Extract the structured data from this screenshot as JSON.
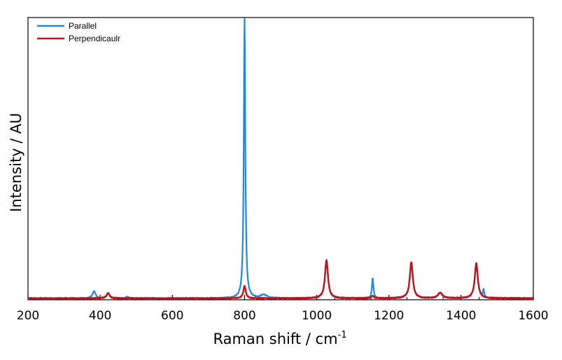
{
  "chart_data": {
    "type": "line",
    "title": "",
    "xlabel": "Raman shift / cm",
    "xlabel_sup": "-1",
    "ylabel": "Intensity / AU",
    "xlim": [
      200,
      1600
    ],
    "ylim": [
      0,
      100
    ],
    "xticks": [
      200,
      400,
      600,
      800,
      1000,
      1200,
      1400,
      1600
    ],
    "grid": false,
    "legend_position": "top-left",
    "baseline": 0.5,
    "series": [
      {
        "name": "Parallel",
        "color": "#1e88e5",
        "peaks": [
          {
            "center": 383,
            "height": 2.5,
            "width": 5
          },
          {
            "center": 422,
            "height": 1.8,
            "width": 5
          },
          {
            "center": 475,
            "height": 0.5,
            "width": 5
          },
          {
            "center": 800,
            "height": 99.0,
            "width": 2.5
          },
          {
            "center": 853,
            "height": 1.2,
            "width": 10
          },
          {
            "center": 1027,
            "height": 13.5,
            "width": 5
          },
          {
            "center": 1155,
            "height": 7.0,
            "width": 2.5
          },
          {
            "center": 1262,
            "height": 12.8,
            "width": 5
          },
          {
            "center": 1342,
            "height": 2.0,
            "width": 7
          },
          {
            "center": 1442,
            "height": 12.5,
            "width": 5
          },
          {
            "center": 1462,
            "height": 2.5,
            "width": 2
          }
        ]
      },
      {
        "name": "Perpendicaulr",
        "color": "#c0131a",
        "peaks": [
          {
            "center": 422,
            "height": 1.8,
            "width": 5
          },
          {
            "center": 800,
            "height": 4.5,
            "width": 4
          },
          {
            "center": 1027,
            "height": 13.5,
            "width": 5
          },
          {
            "center": 1155,
            "height": 0.8,
            "width": 4
          },
          {
            "center": 1262,
            "height": 12.8,
            "width": 5
          },
          {
            "center": 1342,
            "height": 2.0,
            "width": 7
          },
          {
            "center": 1442,
            "height": 12.5,
            "width": 5
          }
        ]
      }
    ]
  }
}
